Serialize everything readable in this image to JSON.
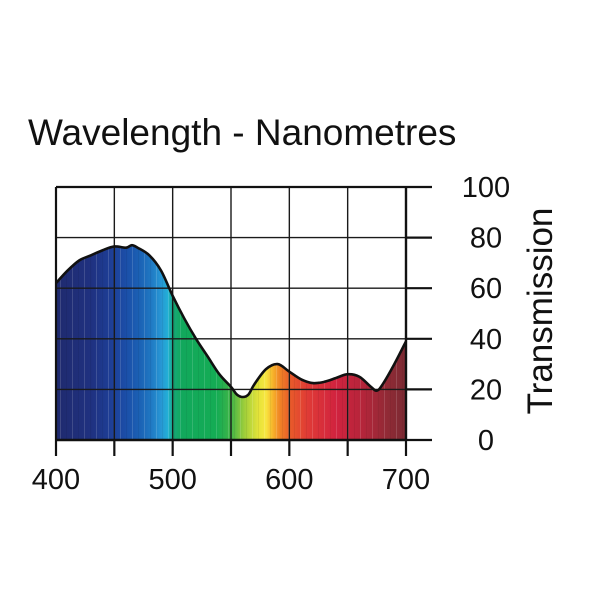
{
  "chart_data": {
    "type": "area",
    "title": "Wavelength - Nanometres",
    "xlabel": "",
    "ylabel": "Transmission",
    "xlim": [
      400,
      700
    ],
    "ylim": [
      0,
      100
    ],
    "x_ticks": [
      400,
      500,
      600,
      700
    ],
    "x_tick_labels": [
      "400",
      "500",
      "600",
      "700"
    ],
    "y_ticks": [
      0,
      20,
      40,
      60,
      80,
      100
    ],
    "y_tick_labels": [
      "0",
      "20",
      "40",
      "60",
      "80",
      "100"
    ],
    "x_grid_step": 50,
    "y_grid_step": 20,
    "y_axis_side": "right",
    "grid": true,
    "fill": "visible-spectrum",
    "series": [
      {
        "x": [
          400,
          410,
          420,
          430,
          440,
          450,
          460,
          465,
          470,
          480,
          490,
          500,
          510,
          520,
          530,
          540,
          550,
          555,
          560,
          565,
          570,
          580,
          590,
          600,
          610,
          620,
          630,
          640,
          650,
          660,
          670,
          675,
          680,
          690,
          700
        ],
        "y": [
          62,
          67,
          71,
          73,
          75,
          76.5,
          76,
          77,
          76,
          73,
          67,
          57,
          48,
          40,
          33,
          26,
          21,
          18,
          17,
          18,
          22,
          28,
          30,
          27,
          24,
          22.5,
          23,
          24.5,
          26,
          25,
          21,
          19.5,
          22,
          30,
          39
        ]
      }
    ]
  }
}
